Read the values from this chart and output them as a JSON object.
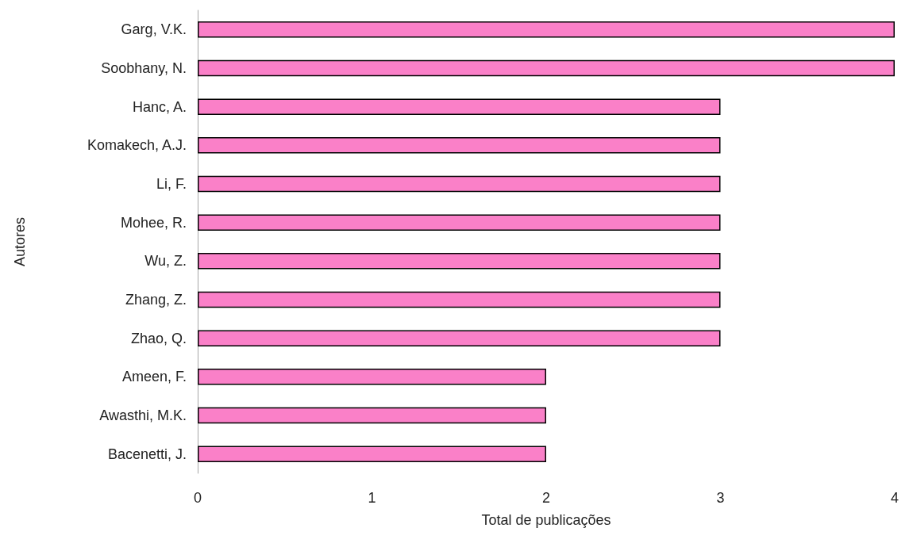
{
  "chart_data": {
    "type": "bar",
    "orientation": "horizontal",
    "xlabel": "Total de publicações",
    "ylabel": "Autores",
    "categories": [
      "Garg, V.K.",
      "Soobhany, N.",
      "Hanc, A.",
      "Komakech, A.J.",
      "Li, F.",
      "Mohee, R.",
      "Wu, Z.",
      "Zhang, Z.",
      "Zhao, Q.",
      "Ameen, F.",
      "Awasthi, M.K.",
      "Bacenetti, J."
    ],
    "values": [
      4,
      4,
      3,
      3,
      3,
      3,
      3,
      3,
      3,
      2,
      2,
      2
    ],
    "color": "#fa80c8",
    "xlim": [
      0,
      4
    ],
    "xticks": [
      0,
      1,
      2,
      3,
      4
    ],
    "grid": false
  }
}
